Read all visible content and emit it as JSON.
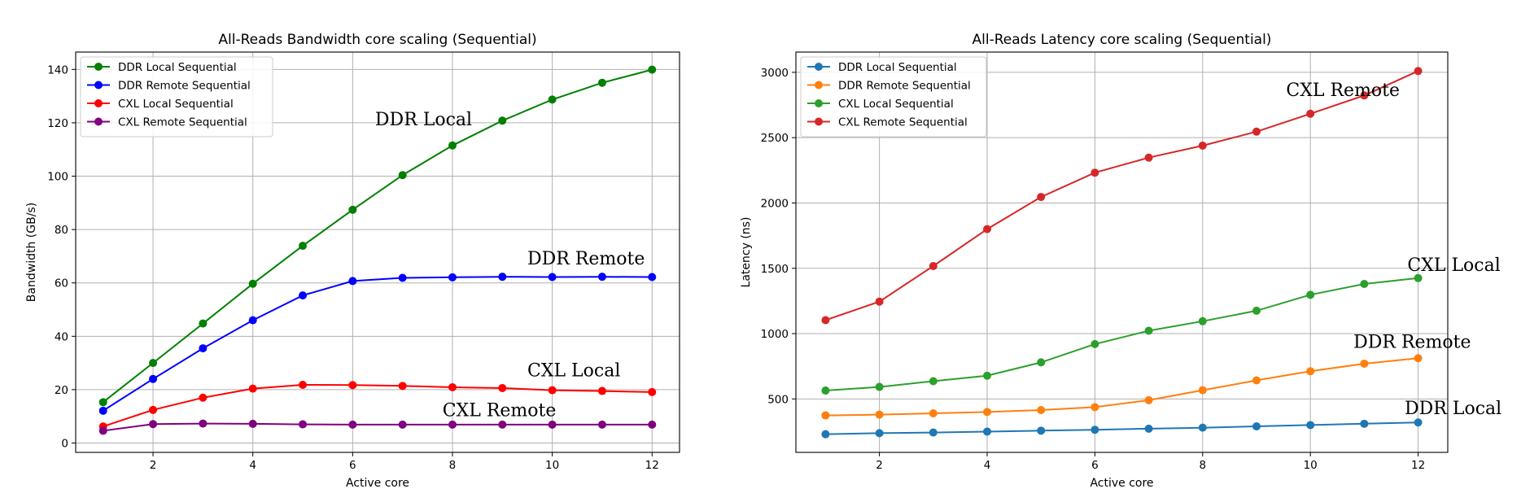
{
  "chart_data": [
    {
      "type": "line",
      "title": "All-Reads Bandwidth core scaling (Sequential)",
      "xlabel": "Active core",
      "ylabel": "Bandwidth (GB/s)",
      "xlim": [
        0.45,
        12.55
      ],
      "ylim": [
        -3.5,
        146.5
      ],
      "xticks": [
        2,
        4,
        6,
        8,
        10,
        12
      ],
      "yticks": [
        0,
        20,
        40,
        60,
        80,
        100,
        120,
        140
      ],
      "grid": true,
      "legend": "upper-left",
      "x": [
        1,
        2,
        3,
        4,
        5,
        6,
        7,
        8,
        9,
        10,
        11,
        12
      ],
      "series": [
        {
          "name": "DDR Local Sequential",
          "color": "#008000",
          "values": [
            15.3,
            30.0,
            44.8,
            59.7,
            73.9,
            87.4,
            100.4,
            111.5,
            120.8,
            128.7,
            135.0,
            139.9
          ]
        },
        {
          "name": "DDR Remote Sequential",
          "color": "#0000ff",
          "values": [
            12.1,
            24.0,
            35.5,
            46.0,
            55.3,
            60.7,
            61.9,
            62.1,
            62.3,
            62.2,
            62.3,
            62.2
          ]
        },
        {
          "name": "CXL Local Sequential",
          "color": "#ff0000",
          "values": [
            6.2,
            12.4,
            17.0,
            20.4,
            21.8,
            21.7,
            21.4,
            20.9,
            20.6,
            19.8,
            19.5,
            19.1
          ]
        },
        {
          "name": "CXL Remote Sequential",
          "color": "#800080",
          "values": [
            4.6,
            7.1,
            7.3,
            7.2,
            7.0,
            6.9,
            6.9,
            6.9,
            6.9,
            6.9,
            6.9,
            6.9
          ]
        }
      ],
      "annotations": [
        {
          "text": "DDR Local",
          "x": 6.45,
          "y": 119
        },
        {
          "text": "DDR Remote",
          "x": 9.5,
          "y": 67
        },
        {
          "text": "CXL Local",
          "x": 9.5,
          "y": 25
        },
        {
          "text": "CXL Remote",
          "x": 7.8,
          "y": 10
        }
      ]
    },
    {
      "type": "line",
      "title": "All-Reads Latency core scaling (Sequential)",
      "xlabel": "Active core",
      "ylabel": "Latency (ns)",
      "xlim": [
        0.45,
        12.55
      ],
      "ylim": [
        91,
        3155
      ],
      "xticks": [
        2,
        4,
        6,
        8,
        10,
        12
      ],
      "yticks": [
        500,
        1000,
        1500,
        2000,
        2500,
        3000
      ],
      "grid": true,
      "legend": "upper-left",
      "x": [
        1,
        2,
        3,
        4,
        5,
        6,
        7,
        8,
        9,
        10,
        11,
        12
      ],
      "series": [
        {
          "name": "DDR Local Sequential",
          "color": "#1f77b4",
          "values": [
            230,
            238,
            243,
            250,
            257,
            264,
            272,
            280,
            290,
            300,
            310,
            320
          ]
        },
        {
          "name": "DDR Remote Sequential",
          "color": "#ff7f0e",
          "values": [
            374,
            380,
            390,
            400,
            415,
            437,
            490,
            567,
            642,
            712,
            770,
            812
          ]
        },
        {
          "name": "CXL Local Sequential",
          "color": "#2ca02c",
          "values": [
            564,
            592,
            636,
            678,
            780,
            920,
            1022,
            1095,
            1175,
            1297,
            1380,
            1425
          ]
        },
        {
          "name": "CXL Remote Sequential",
          "color": "#d62728",
          "values": [
            1103,
            1245,
            1517,
            1800,
            2046,
            2232,
            2347,
            2439,
            2546,
            2683,
            2823,
            3010
          ]
        }
      ],
      "annotations": [
        {
          "text": "CXL Remote",
          "x": 9.55,
          "y": 2820
        },
        {
          "text": "CXL Local",
          "x": 11.8,
          "y": 1480
        },
        {
          "text": "DDR Remote",
          "x": 10.8,
          "y": 890
        },
        {
          "text": "DDR Local",
          "x": 11.75,
          "y": 385
        }
      ]
    }
  ]
}
